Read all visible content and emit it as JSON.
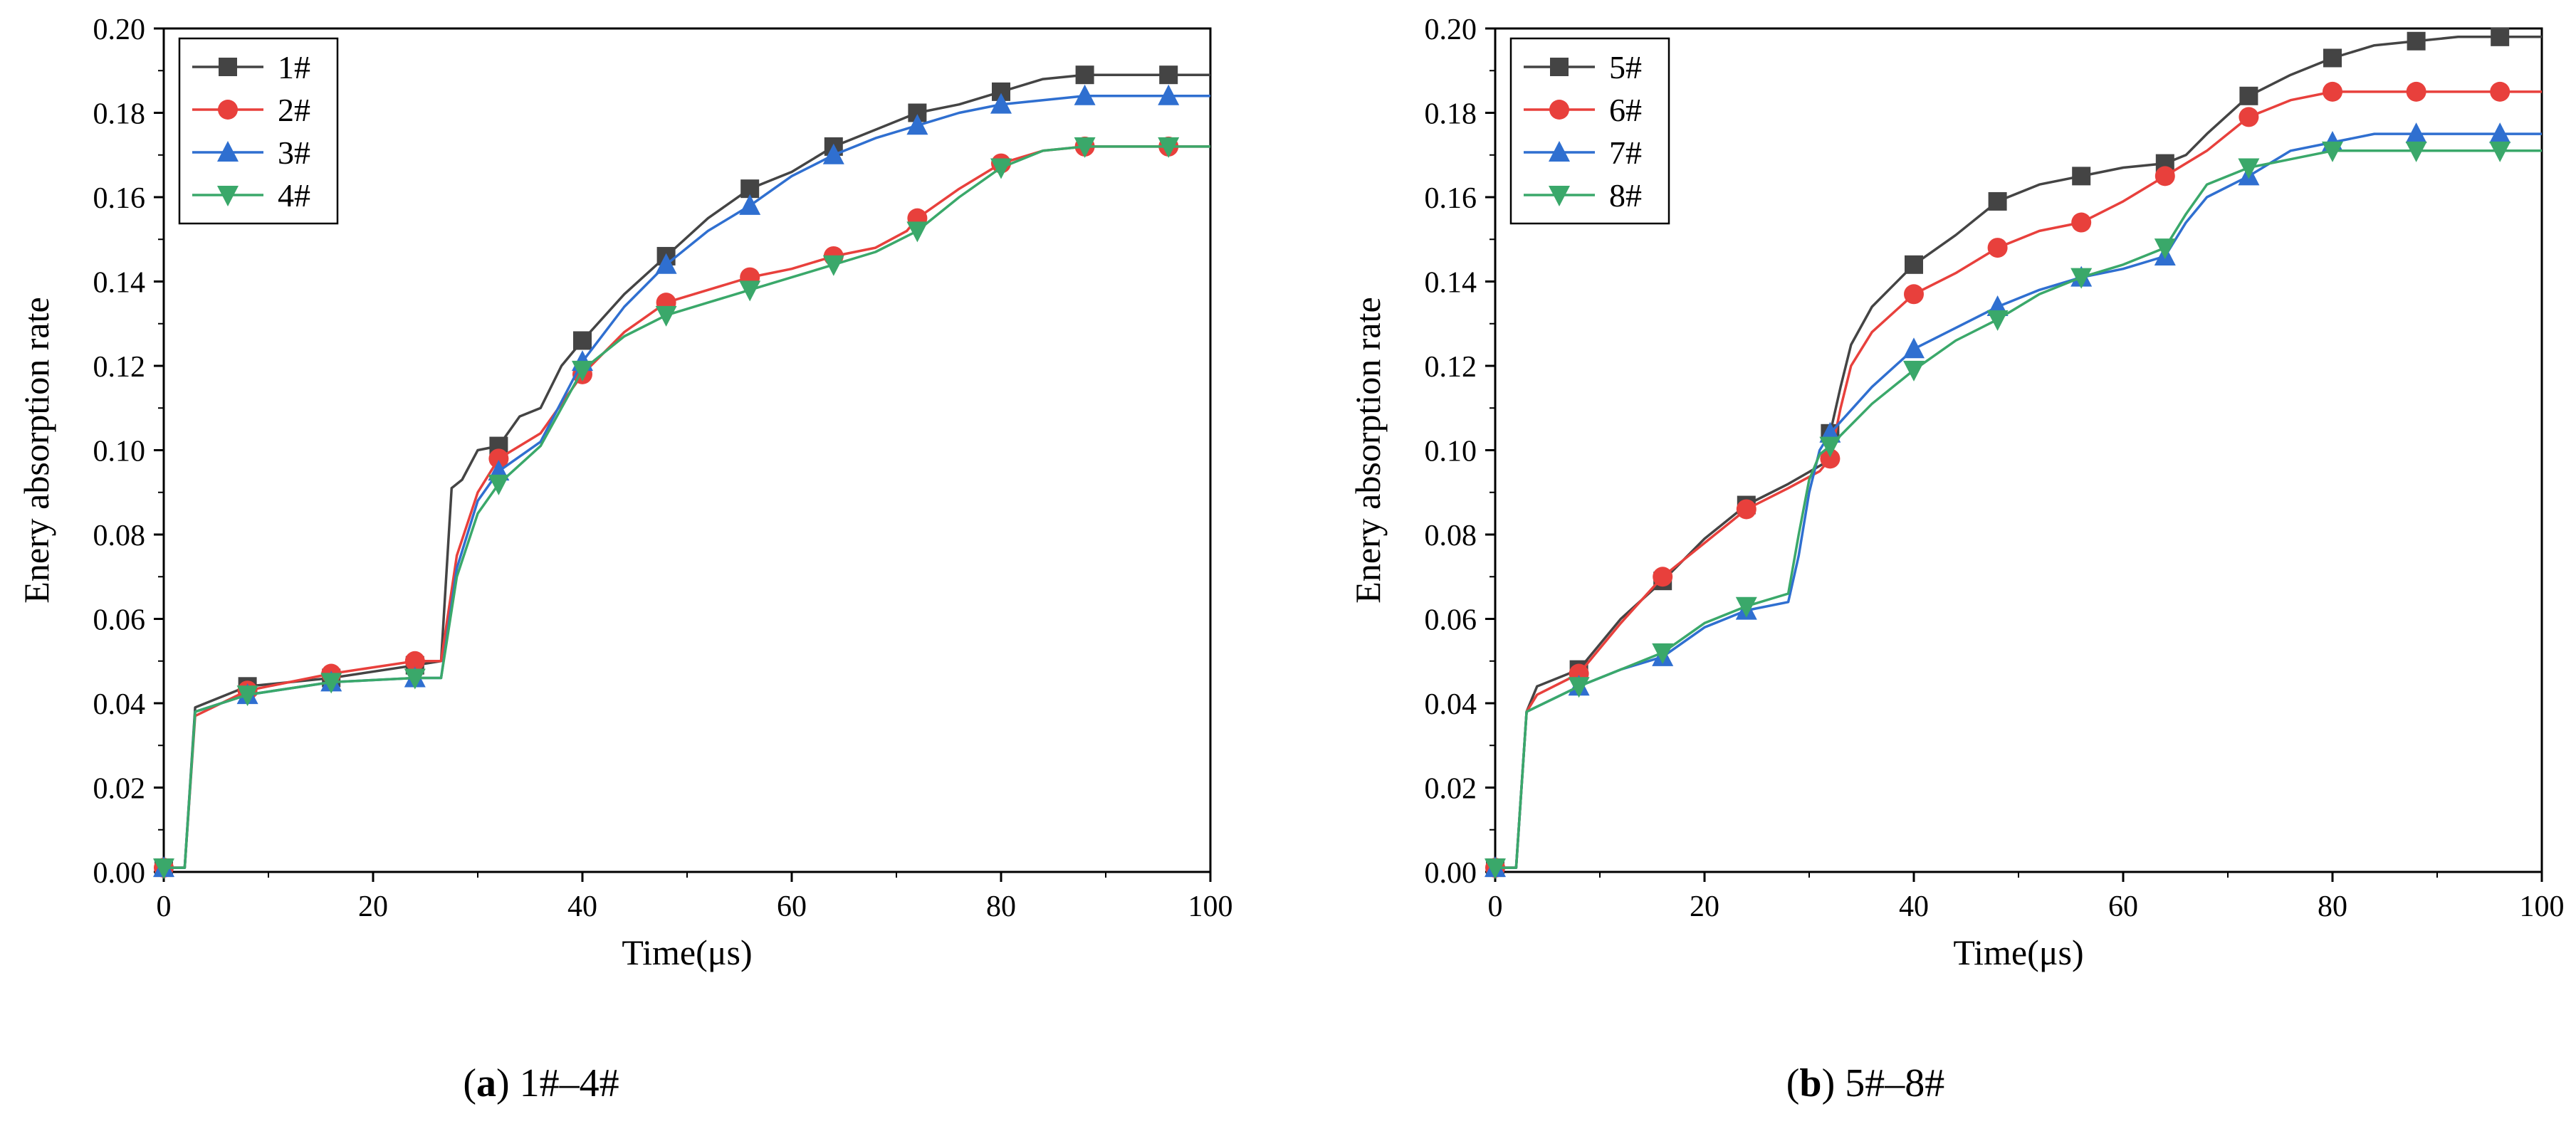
{
  "chart_data": [
    {
      "type": "line",
      "xlabel": "Time(μs)",
      "ylabel": "Enery absorption rate",
      "xlim": [
        0,
        100
      ],
      "ylim": [
        0,
        0.2
      ],
      "xticks": [
        "0",
        "20",
        "40",
        "60",
        "80",
        "100"
      ],
      "yticks": [
        "0.00",
        "0.02",
        "0.04",
        "0.06",
        "0.08",
        "0.10",
        "0.12",
        "0.14",
        "0.16",
        "0.18",
        "0.20"
      ],
      "legend_position": "top-left",
      "series": [
        {
          "name": "1#",
          "color": "#444444",
          "marker": "square",
          "x": [
            0,
            1.5,
            2,
            3,
            8,
            16,
            24,
            26.5,
            27.5,
            28.5,
            30,
            32,
            34,
            36,
            38,
            40,
            44,
            48,
            52,
            56,
            60,
            64,
            68,
            72,
            76,
            80,
            84,
            88,
            92,
            96,
            100
          ],
          "y": [
            0.001,
            0.001,
            0.001,
            0.039,
            0.044,
            0.046,
            0.049,
            0.05,
            0.091,
            0.093,
            0.1,
            0.101,
            0.108,
            0.11,
            0.12,
            0.126,
            0.137,
            0.146,
            0.155,
            0.162,
            0.166,
            0.172,
            0.176,
            0.18,
            0.182,
            0.185,
            0.188,
            0.189,
            0.189,
            0.189,
            0.189
          ],
          "marker_x": [
            0,
            8,
            16,
            24,
            32,
            40,
            48,
            56,
            64,
            72,
            80,
            88,
            96
          ]
        },
        {
          "name": "2#",
          "color": "#e8403c",
          "marker": "circle",
          "x": [
            0,
            1.5,
            2,
            3,
            8,
            16,
            24,
            26.5,
            28,
            30,
            32,
            36,
            40,
            44,
            48,
            52,
            56,
            60,
            64,
            68,
            71,
            72,
            76,
            80,
            84,
            88,
            92,
            96,
            100
          ],
          "y": [
            0.001,
            0.001,
            0.001,
            0.037,
            0.043,
            0.047,
            0.05,
            0.05,
            0.075,
            0.09,
            0.098,
            0.104,
            0.118,
            0.128,
            0.135,
            0.138,
            0.141,
            0.143,
            0.146,
            0.148,
            0.152,
            0.155,
            0.162,
            0.168,
            0.171,
            0.172,
            0.172,
            0.172,
            0.172
          ],
          "marker_x": [
            0,
            8,
            16,
            24,
            32,
            40,
            48,
            56,
            64,
            72,
            80,
            88,
            96
          ]
        },
        {
          "name": "3#",
          "color": "#2f6fd0",
          "marker": "triangle-up",
          "x": [
            0,
            1.5,
            2,
            3,
            8,
            16,
            24,
            26.5,
            28,
            30,
            32,
            36,
            40,
            44,
            48,
            52,
            56,
            60,
            64,
            68,
            72,
            76,
            80,
            84,
            88,
            92,
            96,
            100
          ],
          "y": [
            0.001,
            0.001,
            0.001,
            0.038,
            0.042,
            0.045,
            0.046,
            0.046,
            0.072,
            0.088,
            0.095,
            0.102,
            0.121,
            0.134,
            0.144,
            0.152,
            0.158,
            0.165,
            0.17,
            0.174,
            0.177,
            0.18,
            0.182,
            0.183,
            0.184,
            0.184,
            0.184,
            0.184
          ],
          "marker_x": [
            0,
            8,
            16,
            24,
            32,
            40,
            48,
            56,
            64,
            72,
            80,
            88,
            96
          ]
        },
        {
          "name": "4#",
          "color": "#3aa86a",
          "marker": "triangle-down",
          "x": [
            0,
            1.5,
            2,
            3,
            8,
            16,
            24,
            26.5,
            28,
            30,
            32,
            36,
            40,
            44,
            48,
            52,
            56,
            60,
            64,
            68,
            72,
            76,
            80,
            84,
            88,
            92,
            96,
            100
          ],
          "y": [
            0.001,
            0.001,
            0.001,
            0.038,
            0.042,
            0.045,
            0.046,
            0.046,
            0.07,
            0.085,
            0.092,
            0.101,
            0.119,
            0.127,
            0.132,
            0.135,
            0.138,
            0.141,
            0.144,
            0.147,
            0.152,
            0.16,
            0.167,
            0.171,
            0.172,
            0.172,
            0.172,
            0.172
          ],
          "marker_x": [
            0,
            8,
            16,
            24,
            32,
            40,
            48,
            56,
            64,
            72,
            80,
            88,
            96
          ]
        }
      ],
      "caption": {
        "letter": "a",
        "text": " 1#–4#"
      }
    },
    {
      "type": "line",
      "xlabel": "Time(μs)",
      "ylabel": "Enery absorption rate",
      "xlim": [
        0,
        100
      ],
      "ylim": [
        0,
        0.2
      ],
      "xticks": [
        "0",
        "20",
        "40",
        "60",
        "80",
        "100"
      ],
      "yticks": [
        "0.00",
        "0.02",
        "0.04",
        "0.06",
        "0.08",
        "0.10",
        "0.12",
        "0.14",
        "0.16",
        "0.18",
        "0.20"
      ],
      "legend_position": "top-left",
      "series": [
        {
          "name": "5#",
          "color": "#444444",
          "marker": "square",
          "x": [
            0,
            1.5,
            2,
            3,
            4,
            8,
            12,
            16,
            20,
            24,
            28,
            31.5,
            32,
            33,
            34,
            36,
            40,
            44,
            48,
            52,
            56,
            60,
            64,
            66,
            68,
            72,
            76,
            80,
            84,
            88,
            92,
            96,
            100
          ],
          "y": [
            0.001,
            0.001,
            0.001,
            0.038,
            0.044,
            0.048,
            0.06,
            0.069,
            0.079,
            0.087,
            0.092,
            0.097,
            0.104,
            0.115,
            0.125,
            0.134,
            0.144,
            0.151,
            0.159,
            0.163,
            0.165,
            0.167,
            0.168,
            0.17,
            0.175,
            0.184,
            0.189,
            0.193,
            0.196,
            0.197,
            0.198,
            0.198,
            0.198
          ],
          "marker_x": [
            0,
            8,
            16,
            24,
            32,
            40,
            48,
            56,
            64,
            72,
            80,
            88,
            96
          ]
        },
        {
          "name": "6#",
          "color": "#e8403c",
          "marker": "circle",
          "x": [
            0,
            1.5,
            2,
            3,
            4,
            8,
            12,
            16,
            20,
            24,
            28,
            31,
            32,
            33,
            34,
            36,
            40,
            44,
            48,
            52,
            56,
            60,
            64,
            68,
            72,
            76,
            80,
            84,
            88,
            92,
            96,
            100
          ],
          "y": [
            0.001,
            0.001,
            0.001,
            0.038,
            0.042,
            0.047,
            0.059,
            0.07,
            0.078,
            0.086,
            0.091,
            0.095,
            0.098,
            0.11,
            0.12,
            0.128,
            0.137,
            0.142,
            0.148,
            0.152,
            0.154,
            0.159,
            0.165,
            0.171,
            0.179,
            0.183,
            0.185,
            0.185,
            0.185,
            0.185,
            0.185,
            0.185
          ],
          "marker_x": [
            0,
            8,
            16,
            24,
            32,
            40,
            48,
            56,
            64,
            72,
            80,
            88,
            96
          ]
        },
        {
          "name": "7#",
          "color": "#2f6fd0",
          "marker": "triangle-up",
          "x": [
            0,
            1.5,
            2,
            3,
            8,
            12,
            16,
            20,
            24,
            28,
            29,
            30,
            31,
            32,
            36,
            40,
            44,
            48,
            52,
            56,
            60,
            64,
            66,
            68,
            72,
            76,
            80,
            84,
            88,
            92,
            96,
            100
          ],
          "y": [
            0.001,
            0.001,
            0.001,
            0.038,
            0.044,
            0.048,
            0.051,
            0.058,
            0.062,
            0.064,
            0.075,
            0.09,
            0.1,
            0.104,
            0.115,
            0.124,
            0.129,
            0.134,
            0.138,
            0.141,
            0.143,
            0.146,
            0.154,
            0.16,
            0.165,
            0.171,
            0.173,
            0.175,
            0.175,
            0.175,
            0.175,
            0.175
          ],
          "marker_x": [
            0,
            8,
            16,
            24,
            32,
            40,
            48,
            56,
            64,
            72,
            80,
            88,
            96
          ]
        },
        {
          "name": "8#",
          "color": "#3aa86a",
          "marker": "triangle-down",
          "x": [
            0,
            1.5,
            2,
            3,
            8,
            12,
            16,
            20,
            24,
            28,
            29,
            30,
            31,
            32,
            36,
            40,
            44,
            48,
            52,
            56,
            60,
            64,
            66,
            68,
            72,
            76,
            80,
            84,
            88,
            92,
            96,
            100
          ],
          "y": [
            0.001,
            0.001,
            0.001,
            0.038,
            0.044,
            0.048,
            0.052,
            0.059,
            0.063,
            0.066,
            0.08,
            0.093,
            0.099,
            0.101,
            0.111,
            0.119,
            0.126,
            0.131,
            0.137,
            0.141,
            0.144,
            0.148,
            0.156,
            0.163,
            0.167,
            0.169,
            0.171,
            0.171,
            0.171,
            0.171,
            0.171,
            0.171
          ],
          "marker_x": [
            0,
            8,
            16,
            24,
            32,
            40,
            48,
            56,
            64,
            72,
            80,
            88,
            96
          ]
        }
      ],
      "caption": {
        "letter": "b",
        "text": " 5#–8#"
      }
    }
  ]
}
